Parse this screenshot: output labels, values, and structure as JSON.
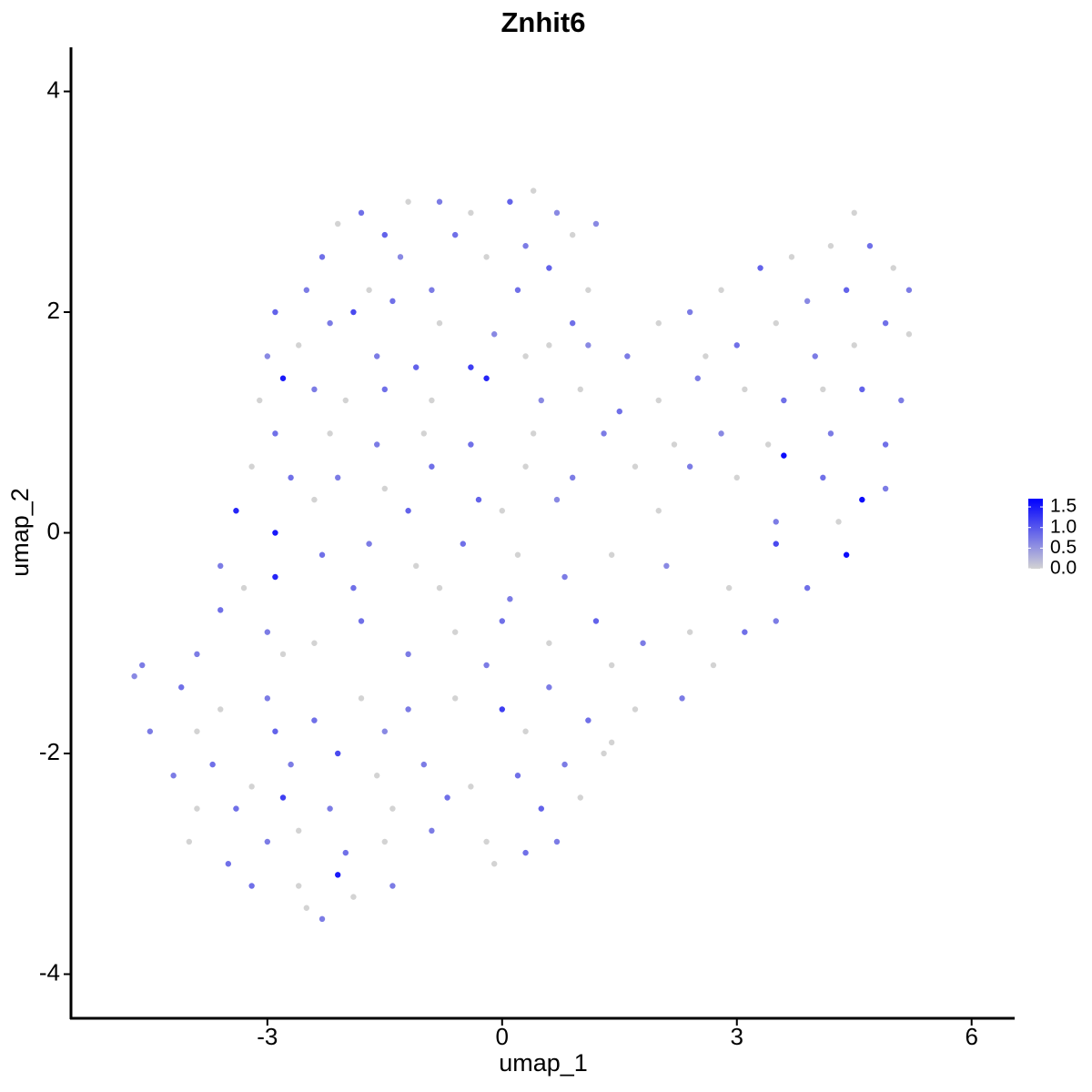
{
  "chart_data": {
    "type": "scatter",
    "title": "Znhit6",
    "x_label": "umap_1",
    "y_label": "umap_2",
    "xlim": [
      -5.51,
      6.55
    ],
    "ylim": [
      -4.4,
      4.4
    ],
    "xticks": [
      -3,
      0,
      3,
      6
    ],
    "yticks": [
      -4,
      -2,
      0,
      2,
      4
    ],
    "color_scale": {
      "low": "#d3d3d3",
      "high": "#0000ff",
      "lim": [
        0,
        1.7
      ],
      "ticks": [
        {
          "value": 0,
          "label": "0.0"
        },
        {
          "value": 0.5,
          "label": "0.5"
        },
        {
          "value": 1,
          "label": "1.0"
        },
        {
          "value": 1.5,
          "label": "1.5"
        }
      ]
    },
    "points": [
      [
        -1.8,
        2.9,
        0.8
      ],
      [
        -1.2,
        3.0,
        0
      ],
      [
        -0.8,
        3.0,
        0.7
      ],
      [
        -0.4,
        2.9,
        0
      ],
      [
        0.1,
        3.0,
        0.9
      ],
      [
        0.4,
        3.1,
        0
      ],
      [
        0.7,
        2.9,
        0.6
      ],
      [
        -2.1,
        2.8,
        0
      ],
      [
        -1.5,
        2.7,
        0.9
      ],
      [
        -0.6,
        2.7,
        0.8
      ],
      [
        0.3,
        2.6,
        0.7
      ],
      [
        0.9,
        2.7,
        0
      ],
      [
        -2.3,
        2.5,
        0.8
      ],
      [
        -1.3,
        2.5,
        0.6
      ],
      [
        -0.2,
        2.5,
        0
      ],
      [
        0.6,
        2.4,
        0.9
      ],
      [
        1.2,
        2.8,
        0.6
      ],
      [
        -2.5,
        2.2,
        0.7
      ],
      [
        -1.7,
        2.2,
        0
      ],
      [
        -0.9,
        2.2,
        0.7
      ],
      [
        0.2,
        2.2,
        0.8
      ],
      [
        1.1,
        2.2,
        0
      ],
      [
        -2.9,
        2.0,
        0.9
      ],
      [
        -2.2,
        1.9,
        0.7
      ],
      [
        -1.9,
        2.0,
        1.1
      ],
      [
        -1.4,
        2.1,
        0.8
      ],
      [
        -0.8,
        1.9,
        0
      ],
      [
        -0.1,
        1.8,
        0.6
      ],
      [
        0.6,
        1.7,
        0
      ],
      [
        0.9,
        1.9,
        0.8
      ],
      [
        -3.0,
        1.6,
        0.6
      ],
      [
        -2.6,
        1.7,
        0
      ],
      [
        -1.6,
        1.6,
        0.7
      ],
      [
        -1.1,
        1.5,
        0.9
      ],
      [
        -0.4,
        1.5,
        1.2
      ],
      [
        0.3,
        1.6,
        0
      ],
      [
        1.1,
        1.7,
        0.6
      ],
      [
        2.0,
        1.9,
        0
      ],
      [
        2.4,
        2.0,
        0.7
      ],
      [
        2.8,
        2.2,
        0
      ],
      [
        3.3,
        2.4,
        0.9
      ],
      [
        3.7,
        2.5,
        0
      ],
      [
        4.2,
        2.6,
        0
      ],
      [
        4.5,
        2.9,
        0
      ],
      [
        4.7,
        2.6,
        0.8
      ],
      [
        5.0,
        2.4,
        0
      ],
      [
        5.2,
        2.2,
        0.7
      ],
      [
        4.4,
        2.2,
        0.9
      ],
      [
        3.9,
        2.1,
        0.6
      ],
      [
        3.5,
        1.9,
        0
      ],
      [
        3.0,
        1.7,
        0.8
      ],
      [
        2.6,
        1.6,
        0
      ],
      [
        1.6,
        1.6,
        0.7
      ],
      [
        4.9,
        1.9,
        0.8
      ],
      [
        5.2,
        1.8,
        0
      ],
      [
        4.5,
        1.7,
        0
      ],
      [
        4.0,
        1.6,
        0.7
      ],
      [
        -3.1,
        1.2,
        0
      ],
      [
        -2.8,
        1.4,
        1.5
      ],
      [
        -2.4,
        1.3,
        0.7
      ],
      [
        -2.0,
        1.2,
        0
      ],
      [
        -1.5,
        1.3,
        0.8
      ],
      [
        -0.9,
        1.2,
        0
      ],
      [
        -0.2,
        1.4,
        1.4
      ],
      [
        0.5,
        1.2,
        0.6
      ],
      [
        1.0,
        1.3,
        0
      ],
      [
        1.5,
        1.1,
        0.8
      ],
      [
        2.0,
        1.2,
        0
      ],
      [
        2.5,
        1.4,
        0.7
      ],
      [
        3.1,
        1.3,
        0
      ],
      [
        3.6,
        1.2,
        0.8
      ],
      [
        4.1,
        1.3,
        0
      ],
      [
        4.6,
        1.3,
        0.9
      ],
      [
        5.1,
        1.2,
        0.7
      ],
      [
        -2.9,
        0.9,
        0.8
      ],
      [
        -2.2,
        0.9,
        0
      ],
      [
        -1.6,
        0.8,
        0.7
      ],
      [
        -1.0,
        0.9,
        0
      ],
      [
        -0.4,
        0.8,
        0.8
      ],
      [
        0.4,
        0.9,
        0
      ],
      [
        1.3,
        0.9,
        0.7
      ],
      [
        2.2,
        0.8,
        0
      ],
      [
        2.8,
        0.9,
        0.6
      ],
      [
        3.4,
        0.8,
        0
      ],
      [
        4.2,
        0.9,
        0.7
      ],
      [
        4.9,
        0.8,
        0.8
      ],
      [
        -3.2,
        0.6,
        0
      ],
      [
        -2.7,
        0.5,
        0.8
      ],
      [
        -2.1,
        0.5,
        0.7
      ],
      [
        -1.5,
        0.4,
        0
      ],
      [
        -0.9,
        0.6,
        0.8
      ],
      [
        -0.3,
        0.3,
        0.9
      ],
      [
        0.3,
        0.6,
        0
      ],
      [
        0.9,
        0.5,
        0.7
      ],
      [
        1.7,
        0.6,
        0
      ],
      [
        2.4,
        0.6,
        0.7
      ],
      [
        3.0,
        0.5,
        0
      ],
      [
        3.6,
        0.7,
        1.6
      ],
      [
        4.1,
        0.5,
        0.8
      ],
      [
        4.6,
        0.3,
        1.6
      ],
      [
        4.9,
        0.4,
        0.7
      ],
      [
        -3.4,
        0.2,
        1.4
      ],
      [
        -2.4,
        0.3,
        0
      ],
      [
        -1.2,
        0.2,
        0.9
      ],
      [
        0.0,
        0.2,
        0
      ],
      [
        0.7,
        0.3,
        0.6
      ],
      [
        2.0,
        0.2,
        0
      ],
      [
        3.5,
        0.1,
        0.7
      ],
      [
        4.3,
        0.1,
        0
      ],
      [
        -3.6,
        -0.3,
        0.7
      ],
      [
        -2.9,
        0.0,
        1.5
      ],
      [
        -2.3,
        -0.2,
        0.8
      ],
      [
        -1.7,
        -0.1,
        0.7
      ],
      [
        -1.1,
        -0.3,
        0
      ],
      [
        -0.5,
        -0.1,
        0.8
      ],
      [
        0.2,
        -0.2,
        0
      ],
      [
        0.8,
        -0.4,
        0.7
      ],
      [
        1.4,
        -0.2,
        0
      ],
      [
        2.1,
        -0.3,
        0.6
      ],
      [
        3.5,
        -0.1,
        1.1
      ],
      [
        4.4,
        -0.2,
        1.6
      ],
      [
        3.9,
        -0.5,
        0.8
      ],
      [
        2.9,
        -0.5,
        0
      ],
      [
        -2.9,
        -0.4,
        1.4
      ],
      [
        -3.3,
        -0.5,
        0
      ],
      [
        -1.9,
        -0.5,
        0.8
      ],
      [
        -0.8,
        -0.5,
        0
      ],
      [
        0.1,
        -0.6,
        0.7
      ],
      [
        -3.6,
        -0.7,
        0.8
      ],
      [
        -3.0,
        -0.9,
        0.7
      ],
      [
        -2.4,
        -1.0,
        0
      ],
      [
        -1.8,
        -0.8,
        0.8
      ],
      [
        -1.2,
        -1.1,
        0.7
      ],
      [
        -0.6,
        -0.9,
        0
      ],
      [
        0.0,
        -0.8,
        0.8
      ],
      [
        0.6,
        -1.0,
        0
      ],
      [
        1.2,
        -0.8,
        0.9
      ],
      [
        1.8,
        -1.0,
        0.7
      ],
      [
        2.4,
        -0.9,
        0
      ],
      [
        3.1,
        -0.9,
        0.8
      ],
      [
        3.5,
        -0.8,
        0.7
      ],
      [
        2.7,
        -1.2,
        0
      ],
      [
        1.4,
        -1.2,
        0
      ],
      [
        -0.2,
        -1.2,
        0.7
      ],
      [
        -2.8,
        -1.1,
        0
      ],
      [
        -3.9,
        -1.1,
        0.7
      ],
      [
        -4.7,
        -1.3,
        0.6
      ],
      [
        -4.6,
        -1.2,
        0.7
      ],
      [
        -4.1,
        -1.4,
        0.8
      ],
      [
        -3.6,
        -1.6,
        0
      ],
      [
        -3.0,
        -1.5,
        0.7
      ],
      [
        -2.4,
        -1.7,
        0.8
      ],
      [
        -1.8,
        -1.5,
        0
      ],
      [
        -1.2,
        -1.6,
        0.7
      ],
      [
        -0.6,
        -1.5,
        0
      ],
      [
        0.0,
        -1.6,
        1.2
      ],
      [
        0.6,
        -1.4,
        0.7
      ],
      [
        1.1,
        -1.7,
        0.8
      ],
      [
        1.7,
        -1.6,
        0
      ],
      [
        2.3,
        -1.5,
        0.7
      ],
      [
        -4.5,
        -1.8,
        0.7
      ],
      [
        -3.9,
        -1.8,
        0
      ],
      [
        -2.9,
        -1.8,
        0.9
      ],
      [
        -1.5,
        -1.8,
        0.6
      ],
      [
        0.3,
        -1.8,
        0
      ],
      [
        1.4,
        -1.9,
        0
      ],
      [
        -4.2,
        -2.2,
        0.7
      ],
      [
        -3.7,
        -2.1,
        0.8
      ],
      [
        -3.2,
        -2.3,
        0
      ],
      [
        -2.7,
        -2.1,
        0.7
      ],
      [
        -2.1,
        -2.0,
        1.1
      ],
      [
        -1.6,
        -2.2,
        0
      ],
      [
        -1.0,
        -2.1,
        0.7
      ],
      [
        -0.4,
        -2.3,
        0
      ],
      [
        0.2,
        -2.2,
        0.8
      ],
      [
        0.8,
        -2.1,
        0.7
      ],
      [
        1.3,
        -2.0,
        0
      ],
      [
        -3.9,
        -2.5,
        0
      ],
      [
        -3.4,
        -2.5,
        0.8
      ],
      [
        -2.8,
        -2.4,
        1.2
      ],
      [
        -2.2,
        -2.5,
        0.7
      ],
      [
        -1.4,
        -2.5,
        0
      ],
      [
        -0.7,
        -2.4,
        0.8
      ],
      [
        0.5,
        -2.5,
        0.9
      ],
      [
        1.0,
        -2.4,
        0
      ],
      [
        -4.0,
        -2.8,
        0
      ],
      [
        -3.5,
        -3.0,
        0.8
      ],
      [
        -3.0,
        -2.8,
        0.7
      ],
      [
        -2.6,
        -2.7,
        0
      ],
      [
        -2.0,
        -2.9,
        0.8
      ],
      [
        -1.5,
        -2.8,
        0
      ],
      [
        -0.9,
        -2.7,
        0.7
      ],
      [
        -0.2,
        -2.8,
        0
      ],
      [
        0.3,
        -2.9,
        0.8
      ],
      [
        0.7,
        -2.8,
        0.7
      ],
      [
        -3.2,
        -3.2,
        0.8
      ],
      [
        -2.6,
        -3.2,
        0
      ],
      [
        -2.1,
        -3.1,
        1.5
      ],
      [
        -1.4,
        -3.2,
        0.7
      ],
      [
        -0.1,
        -3.0,
        0
      ],
      [
        -2.5,
        -3.4,
        0
      ],
      [
        -2.3,
        -3.5,
        0.7
      ],
      [
        -1.9,
        -3.3,
        0
      ]
    ]
  }
}
